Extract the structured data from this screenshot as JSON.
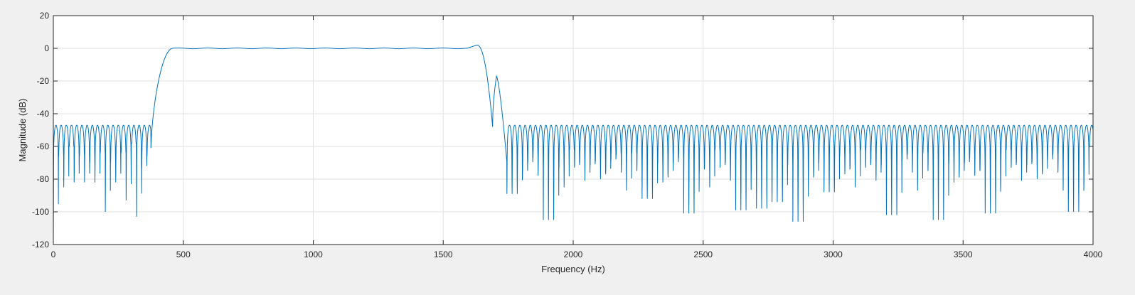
{
  "chart_data": {
    "type": "line",
    "title": "",
    "xlabel": "Frequency (Hz)",
    "ylabel": "Magnitude (dB)",
    "xlim": [
      0,
      4000
    ],
    "ylim": [
      -120,
      20
    ],
    "xticks": [
      0,
      500,
      1000,
      1500,
      2000,
      2500,
      3000,
      3500,
      4000
    ],
    "yticks": [
      20,
      0,
      -20,
      -40,
      -60,
      -80,
      -100,
      -120
    ],
    "grid": true,
    "colors": {
      "line": "#0072BD",
      "axes_bg": "#ffffff",
      "figure_bg": "#f0f0f0",
      "grid": "#e1e1e1",
      "axis": "#262626"
    },
    "series": [
      {
        "description_stopband1": {
          "range_hz": [
            0,
            375
          ],
          "sidelobe_peak_db": -47,
          "null_depths_db": [
            -114,
            -85,
            -82,
            -82,
            -100,
            -82,
            -93,
            -103,
            -66
          ]
        },
        "passband": {
          "range_hz": [
            460,
            1590
          ],
          "level_db": 0,
          "edge_hz": [
            380,
            1700
          ]
        },
        "transition_peak": {
          "x": 1630,
          "y": 2
        },
        "transition_notch": {
          "x": 1690,
          "y": -48
        },
        "transition_sidelobe": {
          "x": 1705,
          "y": -17
        },
        "stopband2": {
          "range_hz": [
            1745,
            4000
          ],
          "sidelobe_peak_db": -47,
          "deep_nulls": [
            [
              1760,
              -89
            ],
            [
              1905,
              -105
            ],
            [
              2280,
              -92
            ],
            [
              2440,
              -101
            ],
            [
              2630,
              -99
            ],
            [
              2710,
              -98
            ],
            [
              2780,
              -94
            ],
            [
              2860,
              -106
            ],
            [
              2970,
              -88
            ],
            [
              3210,
              -102
            ],
            [
              3400,
              -105
            ],
            [
              3590,
              -101
            ],
            [
              3920,
              -100
            ]
          ]
        }
      }
    ]
  }
}
